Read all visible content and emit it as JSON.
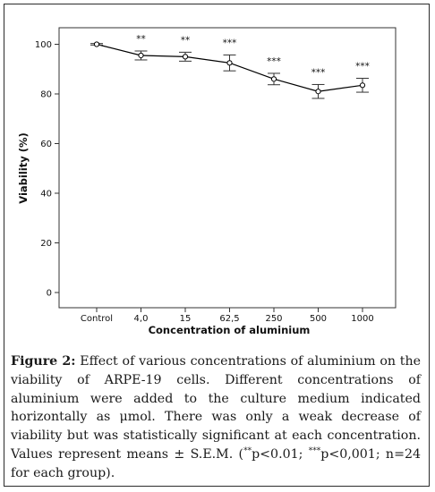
{
  "chart_data": {
    "type": "line",
    "categories": [
      "Control",
      "4,0",
      "15",
      "62,5",
      "250",
      "500",
      "1000"
    ],
    "values": [
      100,
      95.5,
      95.0,
      92.5,
      86.0,
      81.0,
      83.5
    ],
    "errors": [
      0.3,
      1.8,
      1.8,
      3.2,
      2.3,
      2.8,
      2.8
    ],
    "significance": [
      "",
      "**",
      "**",
      "***",
      "***",
      "***",
      "***"
    ],
    "title": "",
    "xlabel": "Concentration of aluminium",
    "ylabel": "Viability (%)",
    "ylim": [
      0,
      100
    ],
    "yticks": [
      "0",
      "20",
      "40",
      "60",
      "80",
      "100"
    ],
    "marker": "open-circle",
    "error_bars": true,
    "grid": false,
    "line_color": "#000000"
  },
  "caption": {
    "label": "Figure 2:",
    "line1": " Effect of various concentrations of aluminium on the viability of ARPE-19 cells. Different concentrations of aluminium were added to the culture medium indicated horizontally as μmol. There was only a weak decrease of viability but was statistically significant at each concentration. Values represent means ± S.E.M. (",
    "sig1_stars": "**",
    "sig1_text": "p<0.01; ",
    "sig2_stars": "***",
    "sig2_text": "p<0,001; n=24 for each group)."
  }
}
